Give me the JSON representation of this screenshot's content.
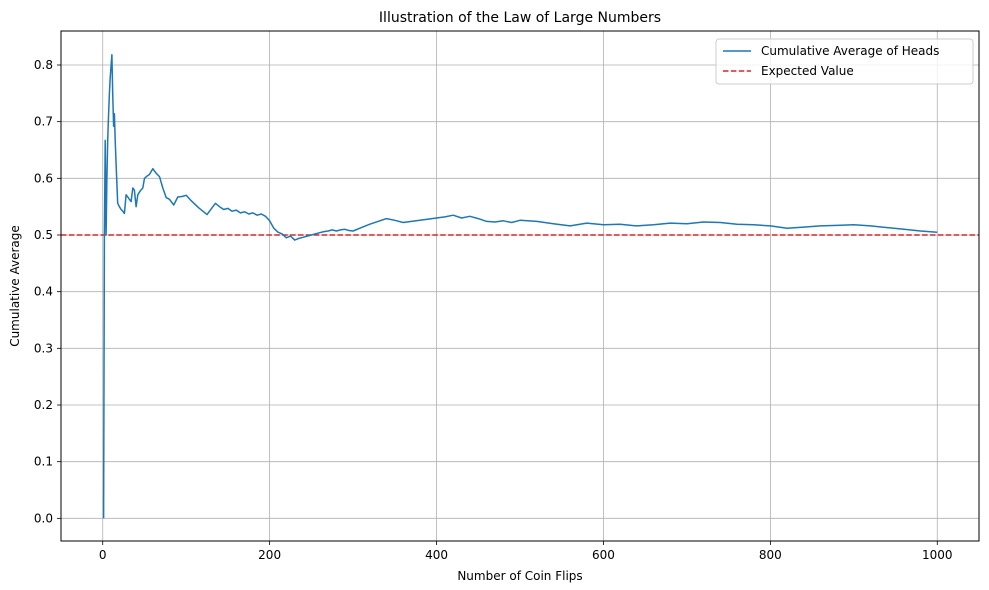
{
  "chart_data": {
    "type": "line",
    "title": "Illustration of the Law of Large Numbers",
    "xlabel": "Number of Coin Flips",
    "ylabel": "Cumulative Average",
    "xlim": [
      -50,
      1050
    ],
    "ylim": [
      -0.04,
      0.86
    ],
    "xticks": [
      0,
      200,
      400,
      600,
      800,
      1000
    ],
    "yticks": [
      0.0,
      0.1,
      0.2,
      0.3,
      0.4,
      0.5,
      0.6,
      0.7,
      0.8
    ],
    "xtick_labels": [
      "0",
      "200",
      "400",
      "600",
      "800",
      "1000"
    ],
    "ytick_labels": [
      "0.0",
      "0.1",
      "0.2",
      "0.3",
      "0.4",
      "0.5",
      "0.6",
      "0.7",
      "0.8"
    ],
    "grid": true,
    "legend_position": "top-right",
    "series": [
      {
        "name": "Cumulative Average of Heads",
        "color": "#1f77b4",
        "style": "solid",
        "x": [
          1,
          2,
          3,
          4,
          5,
          6,
          7,
          8,
          9,
          10,
          11,
          12,
          13,
          14,
          15,
          16,
          18,
          20,
          22,
          24,
          26,
          28,
          30,
          32,
          34,
          36,
          38,
          40,
          42,
          45,
          48,
          50,
          53,
          56,
          60,
          64,
          68,
          72,
          76,
          80,
          85,
          90,
          95,
          100,
          105,
          110,
          115,
          120,
          125,
          130,
          135,
          140,
          145,
          150,
          155,
          160,
          165,
          170,
          175,
          180,
          185,
          190,
          195,
          200,
          205,
          210,
          215,
          220,
          225,
          230,
          235,
          240,
          245,
          250,
          255,
          260,
          265,
          270,
          275,
          280,
          285,
          290,
          295,
          300,
          310,
          320,
          330,
          340,
          350,
          360,
          370,
          380,
          390,
          400,
          410,
          420,
          430,
          440,
          450,
          460,
          470,
          480,
          490,
          500,
          520,
          540,
          560,
          580,
          600,
          620,
          640,
          660,
          680,
          700,
          720,
          740,
          760,
          780,
          800,
          820,
          840,
          860,
          880,
          900,
          920,
          940,
          960,
          980,
          1000
        ],
        "y": [
          0.0,
          0.5,
          0.667,
          0.5,
          0.6,
          0.667,
          0.714,
          0.75,
          0.778,
          0.8,
          0.818,
          0.75,
          0.692,
          0.714,
          0.667,
          0.625,
          0.556,
          0.55,
          0.545,
          0.542,
          0.538,
          0.571,
          0.567,
          0.563,
          0.559,
          0.583,
          0.579,
          0.55,
          0.571,
          0.578,
          0.583,
          0.6,
          0.604,
          0.607,
          0.617,
          0.609,
          0.603,
          0.583,
          0.566,
          0.563,
          0.553,
          0.567,
          0.568,
          0.57,
          0.562,
          0.555,
          0.548,
          0.542,
          0.536,
          0.546,
          0.556,
          0.55,
          0.545,
          0.547,
          0.542,
          0.544,
          0.539,
          0.541,
          0.537,
          0.539,
          0.535,
          0.537,
          0.533,
          0.525,
          0.512,
          0.505,
          0.502,
          0.495,
          0.498,
          0.491,
          0.494,
          0.496,
          0.498,
          0.5,
          0.502,
          0.504,
          0.506,
          0.507,
          0.509,
          0.507,
          0.509,
          0.51,
          0.508,
          0.507,
          0.513,
          0.519,
          0.524,
          0.529,
          0.526,
          0.522,
          0.524,
          0.526,
          0.528,
          0.53,
          0.532,
          0.535,
          0.53,
          0.533,
          0.529,
          0.524,
          0.523,
          0.525,
          0.522,
          0.526,
          0.524,
          0.52,
          0.516,
          0.521,
          0.518,
          0.519,
          0.516,
          0.518,
          0.521,
          0.52,
          0.523,
          0.522,
          0.519,
          0.518,
          0.516,
          0.512,
          0.514,
          0.516,
          0.517,
          0.518,
          0.516,
          0.513,
          0.51,
          0.507,
          0.505
        ]
      },
      {
        "name": "Expected Value",
        "color": "#d62728",
        "style": "dashed",
        "y_constant": 0.5
      }
    ]
  }
}
